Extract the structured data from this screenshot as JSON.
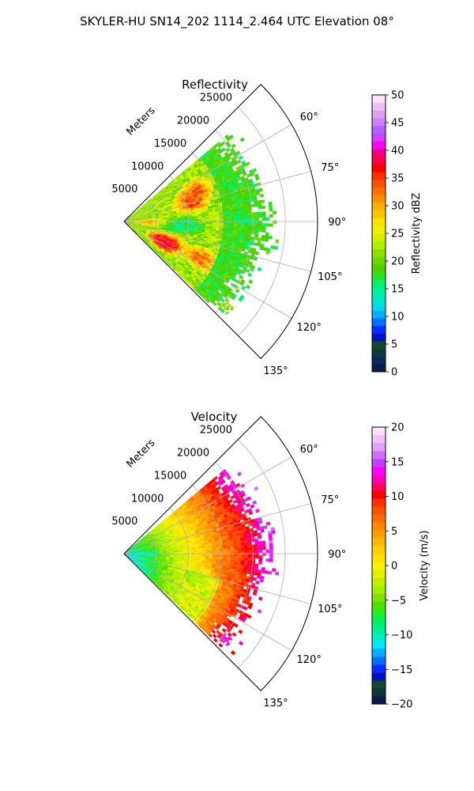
{
  "figure": {
    "suptitle": "SKYLER-HU  SN14_202  1114_2.464 UTC Elevation 08°"
  },
  "chart_data": [
    {
      "type": "heatmap",
      "projection": "polar-sector",
      "title": "Reflectivity",
      "radial_axis_label": "Meters",
      "r_range": [
        0,
        30000
      ],
      "r_ticks": [
        5000,
        10000,
        15000,
        20000,
        25000
      ],
      "r_tick_labels": [
        "5000",
        "10000",
        "15000",
        "20000",
        "25000"
      ],
      "theta_range_deg": [
        45,
        135
      ],
      "theta_ticks_deg": [
        60,
        75,
        90,
        105,
        120,
        135
      ],
      "theta_tick_labels": [
        "60°",
        "75°",
        "90°",
        "105°",
        "120°",
        "135°"
      ],
      "grid": true,
      "colorbar": {
        "label": "Reflectivity dBZ",
        "min": 0,
        "max": 50,
        "ticks": [
          0,
          5,
          10,
          15,
          20,
          25,
          30,
          35,
          40,
          45,
          50
        ],
        "tick_labels": [
          "0",
          "5",
          "10",
          "15",
          "20",
          "25",
          "30",
          "35",
          "40",
          "45",
          "50"
        ],
        "colors": [
          "#0b1a4a",
          "#0a2a5c",
          "#0b3a3a",
          "#0f4a2a",
          "#0010c8",
          "#0030ff",
          "#0070ff",
          "#00b0ff",
          "#00d8e8",
          "#00e8c0",
          "#00f09a",
          "#00f070",
          "#30e020",
          "#50d000",
          "#70d800",
          "#90e000",
          "#b0f000",
          "#d8f000",
          "#f0f000",
          "#ffe000",
          "#ffc800",
          "#ffb000",
          "#ff9000",
          "#ff7000",
          "#ff5000",
          "#ff3000",
          "#ff0000",
          "#ff0040",
          "#f00080",
          "#ff00ff",
          "#d040ff",
          "#b060ff",
          "#d080ff",
          "#e0a0f0",
          "#f0c0f0",
          "#ffe0ff"
        ]
      },
      "echo_features": {
        "max_range_m": 24000,
        "cells": [
          {
            "r": 6500,
            "theta": 120,
            "value": 38
          },
          {
            "r": 7000,
            "theta": 112,
            "value": 36
          },
          {
            "r": 10500,
            "theta": 75,
            "value": 34
          },
          {
            "r": 11500,
            "theta": 66,
            "value": 33
          },
          {
            "r": 13000,
            "theta": 115,
            "value": 33
          },
          {
            "r": 4000,
            "theta": 92,
            "value": 33
          },
          {
            "r": 6500,
            "theta": 96,
            "value": 15
          },
          {
            "r": 9500,
            "theta": 92,
            "value": 15
          }
        ]
      }
    },
    {
      "type": "heatmap",
      "projection": "polar-sector",
      "title": "Velocity",
      "radial_axis_label": "Meters",
      "r_range": [
        0,
        30000
      ],
      "r_ticks": [
        5000,
        10000,
        15000,
        20000,
        25000
      ],
      "r_tick_labels": [
        "5000",
        "10000",
        "15000",
        "20000",
        "25000"
      ],
      "theta_range_deg": [
        45,
        135
      ],
      "theta_ticks_deg": [
        60,
        75,
        90,
        105,
        120,
        135
      ],
      "theta_tick_labels": [
        "60°",
        "75°",
        "90°",
        "105°",
        "120°",
        "135°"
      ],
      "grid": true,
      "colorbar": {
        "label": "Velocity (m/s)",
        "min": -20,
        "max": 20,
        "ticks": [
          -20,
          -15,
          -10,
          -5,
          0,
          5,
          10,
          15,
          20
        ],
        "tick_labels": [
          "−20",
          "−15",
          "−10",
          "−5",
          "0",
          "5",
          "10",
          "15",
          "20"
        ],
        "colors": [
          "#0b1a4a",
          "#0b3a3a",
          "#0f4a2a",
          "#0010c8",
          "#0030ff",
          "#0070ff",
          "#00b0ff",
          "#00e8ff",
          "#00f0c0",
          "#00f090",
          "#00f060",
          "#20f020",
          "#50e000",
          "#80e000",
          "#a0f000",
          "#c0f000",
          "#e0f000",
          "#f8f000",
          "#ffe000",
          "#ffd000",
          "#ffb800",
          "#ffa000",
          "#ff8800",
          "#ff6c00",
          "#ff5000",
          "#ff3000",
          "#ff0000",
          "#ff0060",
          "#ff00c0",
          "#ff00ff",
          "#c040ff",
          "#d070ff",
          "#e0a0ff",
          "#f0c0f8",
          "#ffe0ff"
        ]
      },
      "echo_features": {
        "max_range_m": 24000,
        "cells": [
          {
            "r": 3000,
            "theta": 90,
            "value": -11
          },
          {
            "r": 12000,
            "theta": 108,
            "value": -6
          },
          {
            "r": 20000,
            "theta": 55,
            "value": 13
          },
          {
            "r": 18000,
            "theta": 75,
            "value": 9
          },
          {
            "r": 16000,
            "theta": 100,
            "value": 8
          },
          {
            "r": 20000,
            "theta": 130,
            "value": 13
          }
        ]
      }
    }
  ]
}
